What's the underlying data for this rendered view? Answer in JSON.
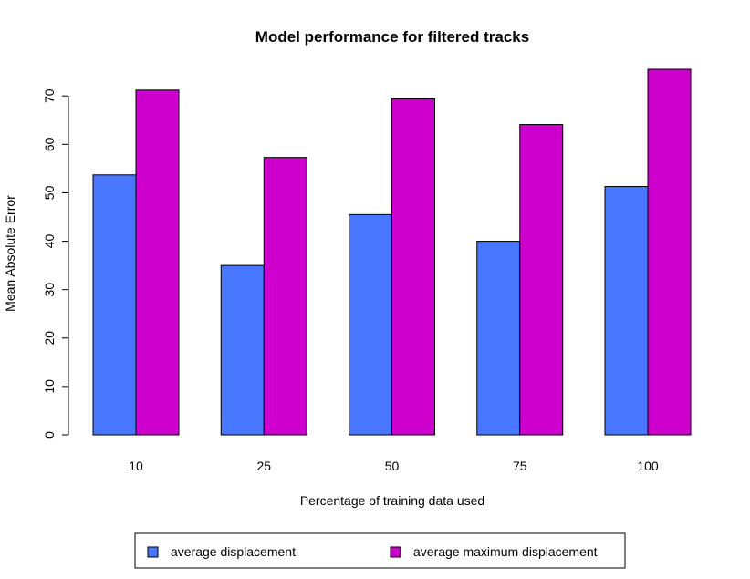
{
  "chart_data": {
    "type": "bar",
    "title": "Model performance for filtered tracks",
    "xlabel": "Percentage of training data used",
    "ylabel": "Mean Absolute Error",
    "categories": [
      "10",
      "25",
      "50",
      "75",
      "100"
    ],
    "series": [
      {
        "name": "average displacement",
        "color": "#4876FF",
        "values": [
          53.7,
          35.0,
          45.5,
          40.0,
          51.3
        ]
      },
      {
        "name": "average maximum displacement",
        "color": "#CD00CD",
        "values": [
          71.2,
          57.3,
          69.4,
          64.1,
          75.5
        ]
      }
    ],
    "ylim": [
      0,
      75.5
    ],
    "yticks": [
      0,
      10,
      20,
      30,
      40,
      50,
      60,
      70
    ],
    "grid": false,
    "legend_position": "bottom"
  }
}
